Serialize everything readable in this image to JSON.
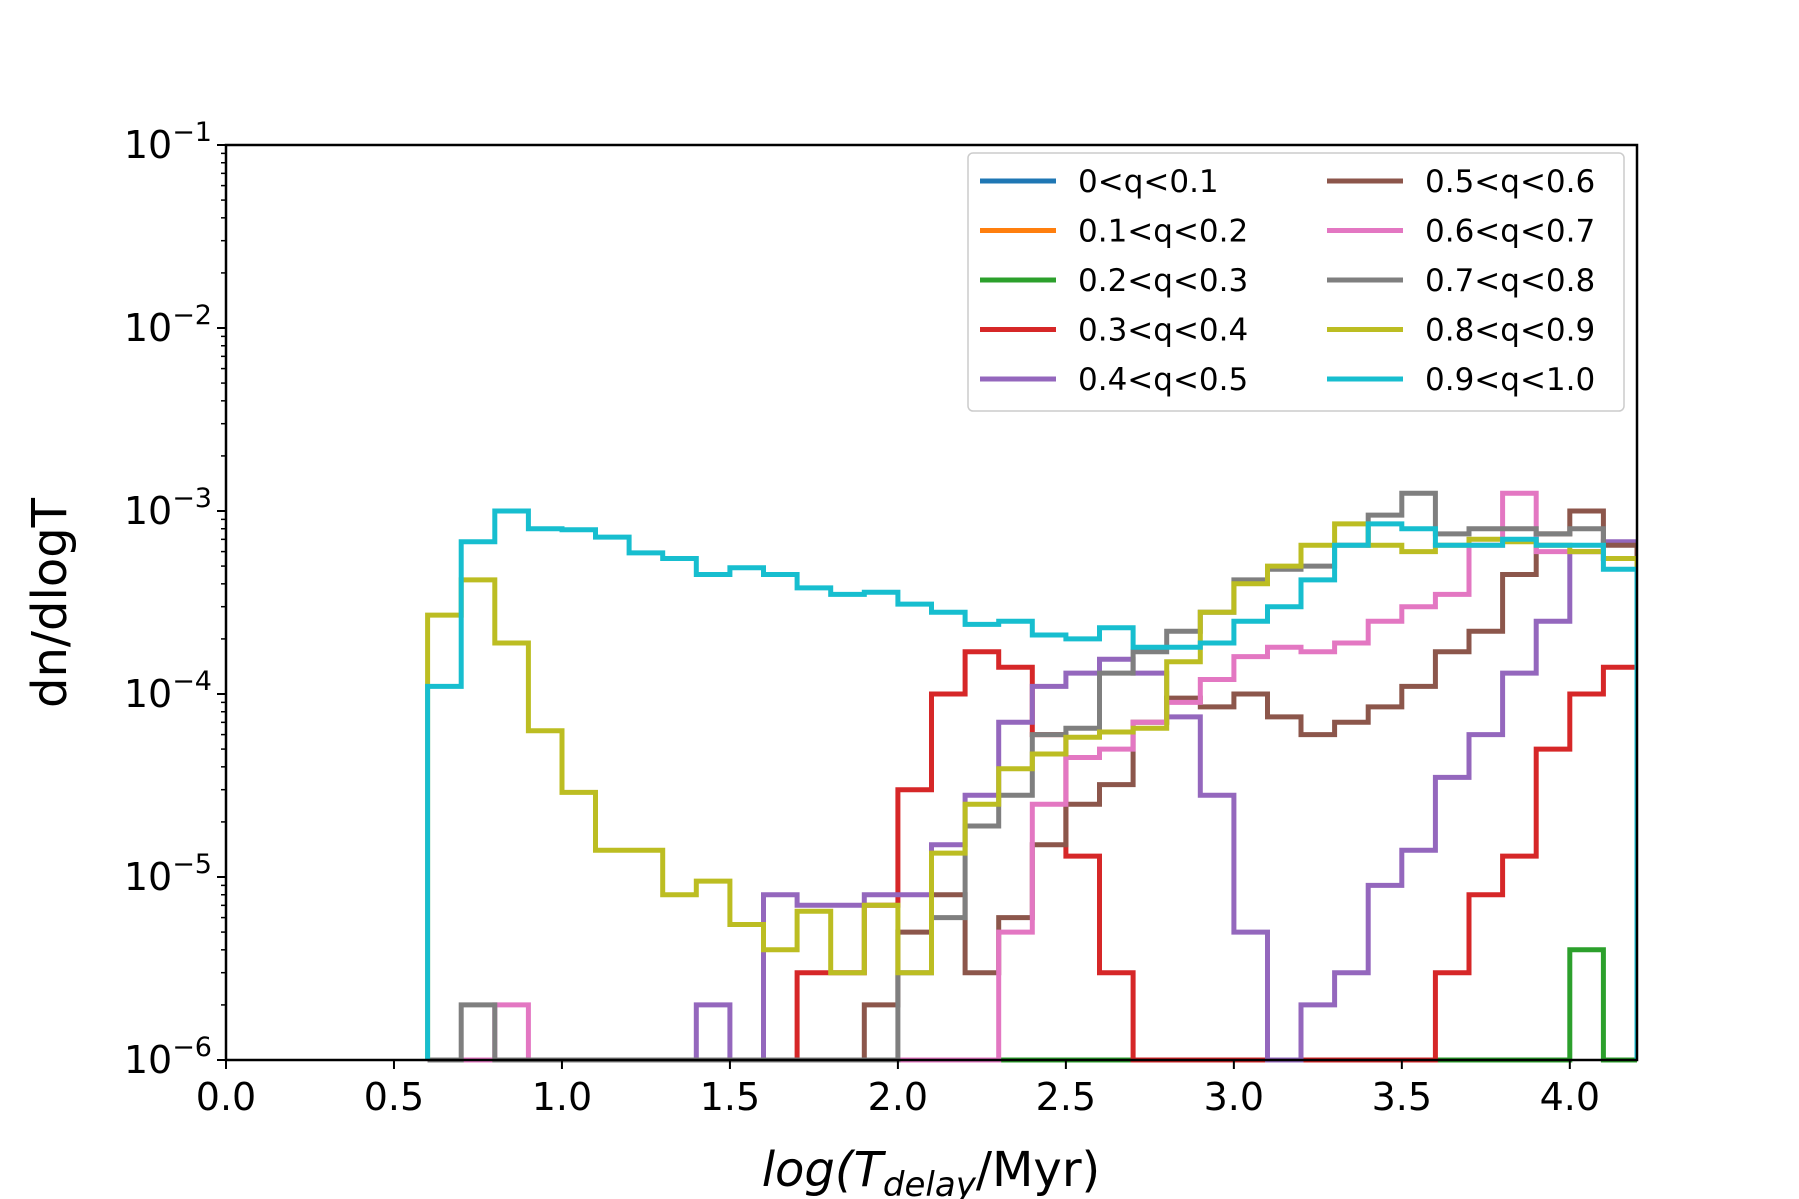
{
  "chart_data": {
    "type": "line",
    "style": "step histogram",
    "title": "",
    "xlabel": {
      "italic": "log(T",
      "sub": "delay",
      "rest": "/Myr)"
    },
    "ylabel": "dn/dlogT",
    "xlim": [
      0.0,
      4.2
    ],
    "ylim_log10": [
      -6,
      -1
    ],
    "yscale": "log",
    "xticks": [
      "0.0",
      "0.5",
      "1.0",
      "1.5",
      "2.0",
      "2.5",
      "3.0",
      "3.5",
      "4.0"
    ],
    "xtick_values": [
      0.0,
      0.5,
      1.0,
      1.5,
      2.0,
      2.5,
      3.0,
      3.5,
      4.0
    ],
    "yticks": [
      {
        "base": "10",
        "exp": "−6",
        "log": -6
      },
      {
        "base": "10",
        "exp": "−5",
        "log": -5
      },
      {
        "base": "10",
        "exp": "−4",
        "log": -4
      },
      {
        "base": "10",
        "exp": "−3",
        "log": -3
      },
      {
        "base": "10",
        "exp": "−2",
        "log": -2
      },
      {
        "base": "10",
        "exp": "−1",
        "log": -1
      }
    ],
    "legend_position": "top-right",
    "bin_start": 0.6,
    "bin_width": 0.1,
    "series": [
      {
        "name": "0<q<0.1",
        "color": "#1f77b4",
        "values": [
          0,
          0,
          0,
          0,
          0,
          0,
          0,
          0,
          0,
          0,
          0,
          0,
          0,
          0,
          0,
          0,
          0,
          0,
          0,
          0,
          0,
          0,
          0,
          0,
          0,
          0,
          0,
          0,
          0,
          0,
          0,
          0,
          0,
          0,
          0,
          0
        ]
      },
      {
        "name": "0.1<q<0.2",
        "color": "#ff7f0e",
        "values": [
          0,
          0,
          0,
          0,
          0,
          0,
          0,
          0,
          0,
          0,
          0,
          0,
          0,
          0,
          0,
          0,
          0,
          0,
          0,
          0,
          0,
          0,
          0,
          0,
          0,
          0,
          0,
          0,
          0,
          0,
          0,
          0,
          0,
          0,
          0,
          0
        ]
      },
      {
        "name": "0.2<q<0.3",
        "color": "#2ca02c",
        "values": [
          0,
          0,
          0,
          0,
          0,
          0,
          0,
          0,
          0,
          0,
          0,
          0,
          0,
          0,
          0,
          0,
          0,
          0,
          0,
          0,
          0,
          0,
          0,
          0,
          0,
          0,
          0,
          0,
          0,
          0,
          0,
          0,
          0,
          0,
          4e-06,
          0
        ]
      },
      {
        "name": "0.3<q<0.4",
        "color": "#d62728",
        "values": [
          0,
          0,
          0,
          0,
          0,
          0,
          0,
          0,
          0,
          0,
          0,
          3e-06,
          3e-06,
          7e-06,
          3e-05,
          0.0001,
          0.00017,
          0.00014,
          6e-05,
          1.3e-05,
          3e-06,
          1e-06,
          0,
          0,
          0,
          0,
          0,
          0,
          0,
          0,
          3e-06,
          8e-06,
          1.3e-05,
          5e-05,
          0.0001,
          0.00014
        ]
      },
      {
        "name": "0.4<q<0.5",
        "color": "#9467bd",
        "values": [
          0,
          0,
          0,
          0,
          0,
          0,
          0,
          0,
          2e-06,
          1e-06,
          8e-06,
          7e-06,
          7e-06,
          8e-06,
          8e-06,
          1.5e-05,
          2.8e-05,
          7e-05,
          0.00011,
          0.00013,
          0.000155,
          0.00013,
          7.5e-05,
          2.8e-05,
          5e-06,
          1e-06,
          2e-06,
          3e-06,
          9e-06,
          1.4e-05,
          3.5e-05,
          6e-05,
          0.00013,
          0.00025,
          0.0006,
          0.00068
        ]
      },
      {
        "name": "0.5<q<0.6",
        "color": "#8c564b",
        "values": [
          0,
          0,
          0,
          0,
          0,
          0,
          0,
          0,
          0,
          0,
          0,
          0,
          0,
          2e-06,
          5e-06,
          8e-06,
          3e-06,
          6e-06,
          1.5e-05,
          2.5e-05,
          3.2e-05,
          7e-05,
          9.5e-05,
          8.5e-05,
          0.0001,
          7.5e-05,
          6e-05,
          7e-05,
          8.5e-05,
          0.00011,
          0.00017,
          0.00022,
          0.00045,
          0.00075,
          0.001,
          0.00065
        ]
      },
      {
        "name": "0.6<q<0.7",
        "color": "#e377c2",
        "values": [
          0,
          0,
          2e-06,
          0,
          0,
          0,
          0,
          0,
          0,
          0,
          0,
          0,
          0,
          0,
          0,
          0,
          0,
          5e-06,
          2.5e-05,
          4.5e-05,
          5e-05,
          7e-05,
          9e-05,
          0.00012,
          0.00016,
          0.00018,
          0.00017,
          0.00019,
          0.00025,
          0.0003,
          0.00035,
          0.00065,
          0.00125,
          0.0006,
          0.0006,
          0.00055
        ]
      },
      {
        "name": "0.7<q<0.8",
        "color": "#7f7f7f",
        "values": [
          0,
          2e-06,
          0,
          0,
          0,
          0,
          0,
          0,
          0,
          0,
          0,
          0,
          0,
          0,
          3e-06,
          6e-06,
          1.9e-05,
          2.8e-05,
          6e-05,
          6.5e-05,
          0.00013,
          0.00017,
          0.00022,
          0.00028,
          0.00042,
          0.00048,
          0.0005,
          0.00065,
          0.00095,
          0.00125,
          0.00075,
          0.0008,
          0.0008,
          0.00075,
          0.0008,
          0.00055
        ]
      },
      {
        "name": "0.8<q<0.9",
        "color": "#bcbd22",
        "values": [
          0.00027,
          0.00042,
          0.00019,
          6.3e-05,
          2.9e-05,
          1.4e-05,
          1.4e-05,
          8e-06,
          9.5e-06,
          5.5e-06,
          4e-06,
          6.5e-06,
          3e-06,
          7e-06,
          3e-06,
          1.35e-05,
          2.5e-05,
          3.9e-05,
          4.7e-05,
          5.8e-05,
          6.2e-05,
          6.5e-05,
          0.00015,
          0.00028,
          0.0004,
          0.0005,
          0.00065,
          0.00085,
          0.00065,
          0.0006,
          0.00065,
          0.0007,
          0.00068,
          0.00065,
          0.0006,
          0.00055
        ]
      },
      {
        "name": "0.9<q<1.0",
        "color": "#17becf",
        "values": [
          0.00011,
          0.00068,
          0.001,
          0.0008,
          0.00079,
          0.00072,
          0.00059,
          0.00055,
          0.00045,
          0.00049,
          0.00045,
          0.00038,
          0.00035,
          0.00036,
          0.00031,
          0.00028,
          0.00024,
          0.00025,
          0.00021,
          0.0002,
          0.00023,
          0.00018,
          0.00018,
          0.00019,
          0.00025,
          0.0003,
          0.00042,
          0.00065,
          0.00085,
          0.0008,
          0.00065,
          0.00065,
          0.0007,
          0.00065,
          0.00065,
          0.00048
        ]
      }
    ]
  }
}
